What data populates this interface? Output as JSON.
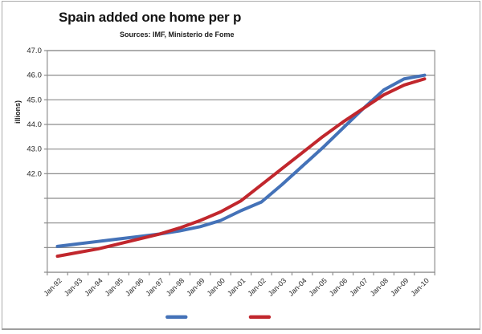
{
  "window": {
    "background": "#ffffff",
    "frame_border_color": "#ababab"
  },
  "chart_data": {
    "type": "line",
    "title": "Spain added one home per p",
    "subtitle": "Sources: IMF, Ministerio de Fome",
    "y_axis_title": "illions)",
    "categories": [
      "Jan-92",
      "Jan-93",
      "Jan-94",
      "Jan-95",
      "Jan-96",
      "Jan-97",
      "Jan-98",
      "Jan-99",
      "Jan-00",
      "Jan-01",
      "Jan-02",
      "Jan-03",
      "Jan-04",
      "Jan-05",
      "Jan-06",
      "Jan-07",
      "Jan-08",
      "Jan-09",
      "Jan-10"
    ],
    "ylim": [
      38.0,
      47.0
    ],
    "y_gridline_step": 1.0,
    "y_tick_labels": [
      "47.0",
      "46.0",
      "45.0",
      "44.0",
      "43.0",
      "42.0"
    ],
    "grid": true,
    "gridline_color": "#8c8c8c",
    "axis_color": "#8c8c8c",
    "tick_label_color": "#262626",
    "legend_position": "bottom",
    "legend_text_visible": false,
    "series": [
      {
        "name": "blue-series",
        "color": "#4472b8",
        "values": [
          39.05,
          39.15,
          39.25,
          39.35,
          39.45,
          39.55,
          39.68,
          39.85,
          40.1,
          40.5,
          40.85,
          41.55,
          42.3,
          43.05,
          43.85,
          44.65,
          45.4,
          45.85,
          46.0
        ]
      },
      {
        "name": "red-series",
        "color": "#c1272d",
        "values": [
          38.65,
          38.8,
          38.95,
          39.15,
          39.35,
          39.55,
          39.8,
          40.1,
          40.45,
          40.9,
          41.55,
          42.2,
          42.85,
          43.5,
          44.1,
          44.65,
          45.2,
          45.6,
          45.85
        ]
      }
    ]
  }
}
